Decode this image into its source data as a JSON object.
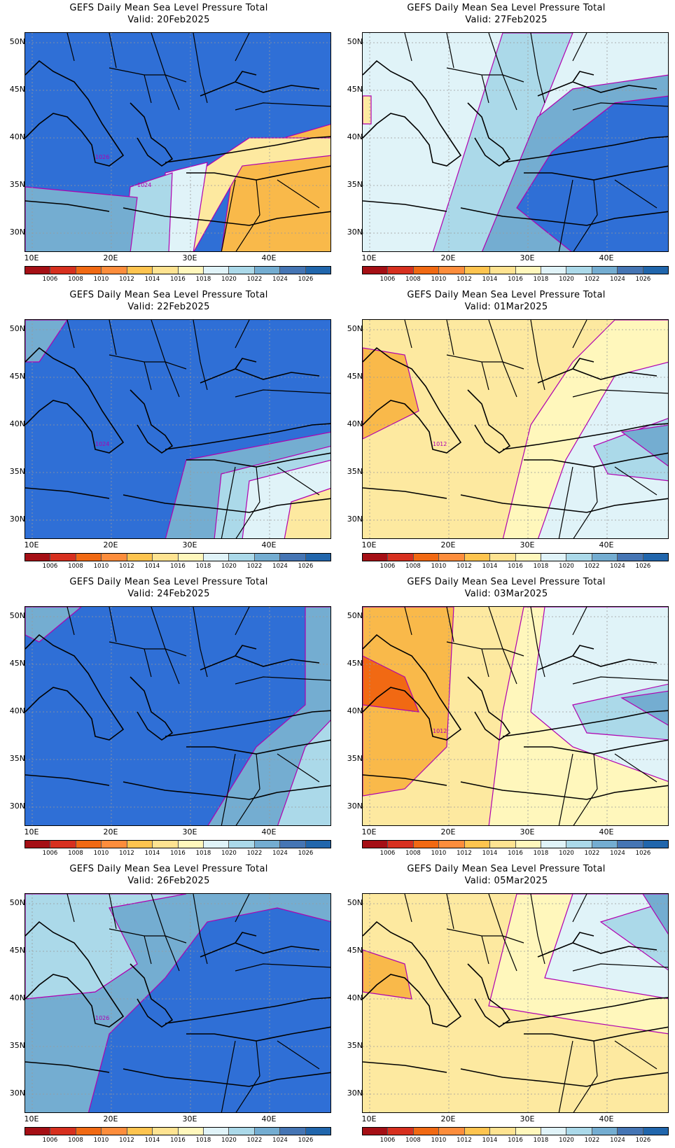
{
  "colorbar": {
    "labels": [
      "1006",
      "1008",
      "1010",
      "1012",
      "1014",
      "1016",
      "1018",
      "1020",
      "1022",
      "1024",
      "1026"
    ],
    "colors": [
      "#a50f15",
      "#d7301f",
      "#f16913",
      "#fd8d3c",
      "#fec44f",
      "#fee391",
      "#fff7bc",
      "#e0f3f8",
      "#abd9e9",
      "#74add1",
      "#4575b4",
      "#2166ac"
    ]
  },
  "axes": {
    "lat_labels": [
      "50N",
      "45N",
      "40N",
      "35N",
      "30N"
    ],
    "lon_labels": [
      "10E",
      "20E",
      "30E",
      "40E"
    ]
  },
  "panels": [
    {
      "title": "GEFS Daily Mean Sea Level Pressure Total",
      "valid": "Valid: 20Feb2025",
      "base": "#2f6fd6",
      "contour_labels": [
        "1026",
        "1024"
      ],
      "regions": [
        [
          "#f9b94a",
          "M300,170 L438,130 L438,314 L280,314 Z"
        ],
        [
          "#fde9a0",
          "M230,210 L320,150 L438,150 L438,175 L310,190 L270,260 L240,314 L205,314 Z"
        ],
        [
          "#e0f3f8",
          "M200,200 L260,185 L240,314 L200,314 Z"
        ],
        [
          "#abd9e9",
          "M150,220 L210,200 L205,314 L140,314 Z"
        ],
        [
          "#74add1",
          "M0,220 L160,235 L150,314 L0,314 Z"
        ]
      ]
    },
    {
      "title": "GEFS Daily Mean Sea Level Pressure Total",
      "valid": "Valid: 27Feb2025",
      "base": "#e0f3f8",
      "contour_labels": [],
      "regions": [
        [
          "#abd9e9",
          "M100,314 L200,0 L300,0 L260,100 L170,314 Z"
        ],
        [
          "#74add1",
          "M170,314 L250,120 L300,80 L438,60 L438,314 Z"
        ],
        [
          "#2f6fd6",
          "M270,170 L360,100 L438,90 L438,314 L300,314 L220,250 Z"
        ],
        [
          "#fde9a0",
          "M0,90 L12,90 L12,130 L0,130 Z"
        ]
      ]
    },
    {
      "title": "GEFS Daily Mean Sea Level Pressure Total",
      "valid": "Valid: 22Feb2025",
      "base": "#2f6fd6",
      "contour_labels": [
        "1024"
      ],
      "regions": [
        [
          "#74add1",
          "M0,0 L60,0 L20,60 L0,60 Z"
        ],
        [
          "#74add1",
          "M230,200 L438,160 L438,314 L200,314 Z"
        ],
        [
          "#abd9e9",
          "M280,220 L438,180 L438,314 L270,314 Z"
        ],
        [
          "#e0f3f8",
          "M320,230 L438,200 L438,314 L310,314 Z"
        ],
        [
          "#fde9a0",
          "M380,260 L438,240 L438,314 L370,314 Z"
        ]
      ]
    },
    {
      "title": "GEFS Daily Mean Sea Level Pressure Total",
      "valid": "Valid: 01Mar2025",
      "base": "#fde9a0",
      "contour_labels": [
        "1012"
      ],
      "regions": [
        [
          "#f9b94a",
          "M0,40 L60,50 L80,130 L0,170 Z"
        ],
        [
          "#fff7bc",
          "M200,314 L240,150 L300,60 L360,0 L438,0 L438,314 Z"
        ],
        [
          "#e0f3f8",
          "M250,314 L290,200 L360,80 L438,60 L438,314 Z"
        ],
        [
          "#abd9e9",
          "M330,180 L438,140 L438,230 L350,220 Z"
        ],
        [
          "#74add1",
          "M370,160 L438,150 L438,210 Z"
        ]
      ]
    },
    {
      "title": "GEFS Daily Mean Sea Level Pressure Total",
      "valid": "Valid: 24Feb2025",
      "base": "#2f6fd6",
      "contour_labels": [],
      "regions": [
        [
          "#74add1",
          "M0,0 L80,0 L20,50 L0,40 Z"
        ],
        [
          "#74add1",
          "M400,0 L438,0 L438,314 L260,314 L330,200 L400,140 Z"
        ],
        [
          "#abd9e9",
          "M360,314 L400,200 L438,160 L438,314 Z"
        ]
      ]
    },
    {
      "title": "GEFS Daily Mean Sea Level Pressure Total",
      "valid": "Valid: 03Mar2025",
      "base": "#fde9a0",
      "contour_labels": [
        "1012"
      ],
      "regions": [
        [
          "#f9b94a",
          "M0,0 L130,0 L120,200 L60,260 L0,270 Z"
        ],
        [
          "#f16913",
          "M0,70 L60,100 L80,150 L0,140 Z"
        ],
        [
          "#fff7bc",
          "M180,314 L200,150 L230,0 L438,0 L438,314 Z"
        ],
        [
          "#e0f3f8",
          "M240,150 L260,0 L438,0 L438,250 L300,200 Z"
        ],
        [
          "#abd9e9",
          "M300,140 L438,110 L438,190 L320,180 Z"
        ],
        [
          "#74add1",
          "M370,130 L438,120 L438,170 Z"
        ]
      ]
    },
    {
      "title": "GEFS Daily Mean Sea Level Pressure Total",
      "valid": "Valid: 26Feb2025",
      "base": "#74add1",
      "contour_labels": [
        "1026"
      ],
      "regions": [
        [
          "#e0f3f8",
          "M0,60 L120,20 L160,100 L100,140 L0,150 Z"
        ],
        [
          "#abd9e9",
          "M0,150 L100,140 L160,100 L120,20 L230,0 L0,0 Z"
        ],
        [
          "#2f6fd6",
          "M90,314 L120,200 L200,120 L260,40 L360,20 L438,40 L438,314 Z"
        ]
      ]
    },
    {
      "title": "GEFS Daily Mean Sea Level Pressure Total",
      "valid": "Valid: 05Mar2025",
      "base": "#fde9a0",
      "contour_labels": [],
      "regions": [
        [
          "#f9b94a",
          "M0,80 L60,100 L70,150 L0,140 Z"
        ],
        [
          "#fff7bc",
          "M180,160 L220,0 L438,0 L438,200 L300,180 Z"
        ],
        [
          "#e0f3f8",
          "M260,120 L300,0 L438,0 L438,150 Z"
        ],
        [
          "#abd9e9",
          "M340,40 L438,10 L438,110 Z"
        ],
        [
          "#74add1",
          "M400,0 L438,0 L438,60 Z"
        ]
      ]
    }
  ]
}
